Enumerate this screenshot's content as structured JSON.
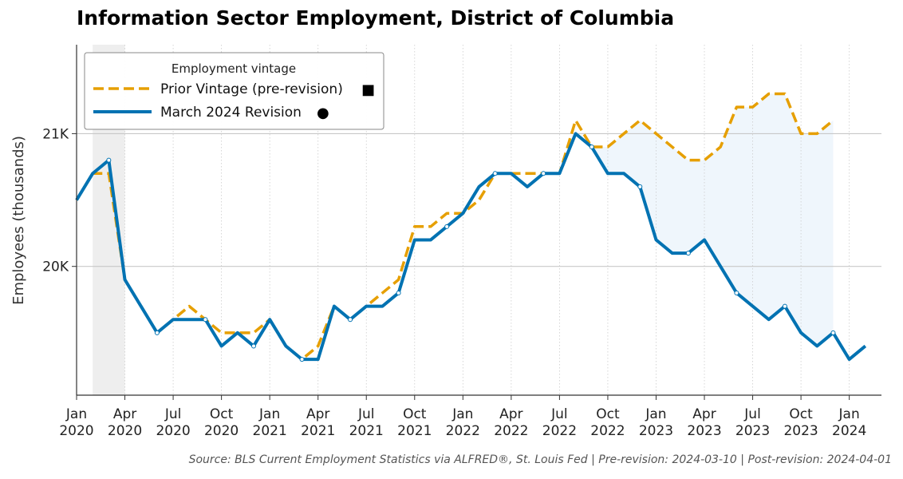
{
  "title": "Information Sector Employment, District of Columbia",
  "source_note": "Source: BLS Current Employment Statistics via ALFRED®, St. Louis Fed  |  Pre-revision: 2024-03-10  |  Post-revision: 2024-04-01",
  "chart_data": {
    "type": "line",
    "title": "Information Sector Employment, District of Columbia",
    "ylabel": "Employees (thousands)",
    "xlabel": "",
    "ylim": [
      19.03,
      21.67
    ],
    "xlim": [
      "2020-01",
      "2024-03"
    ],
    "x_ticks": [
      {
        "date": "2020-01",
        "line1": "Jan",
        "line2": "2020"
      },
      {
        "date": "2020-04",
        "line1": "Apr",
        "line2": "2020"
      },
      {
        "date": "2020-07",
        "line1": "Jul",
        "line2": "2020"
      },
      {
        "date": "2020-10",
        "line1": "Oct",
        "line2": "2020"
      },
      {
        "date": "2021-01",
        "line1": "Jan",
        "line2": "2021"
      },
      {
        "date": "2021-04",
        "line1": "Apr",
        "line2": "2021"
      },
      {
        "date": "2021-07",
        "line1": "Jul",
        "line2": "2021"
      },
      {
        "date": "2021-10",
        "line1": "Oct",
        "line2": "2021"
      },
      {
        "date": "2022-01",
        "line1": "Jan",
        "line2": "2022"
      },
      {
        "date": "2022-04",
        "line1": "Apr",
        "line2": "2022"
      },
      {
        "date": "2022-07",
        "line1": "Jul",
        "line2": "2022"
      },
      {
        "date": "2022-10",
        "line1": "Oct",
        "line2": "2022"
      },
      {
        "date": "2023-01",
        "line1": "Jan",
        "line2": "2023"
      },
      {
        "date": "2023-04",
        "line1": "Apr",
        "line2": "2023"
      },
      {
        "date": "2023-07",
        "line1": "Jul",
        "line2": "2023"
      },
      {
        "date": "2023-10",
        "line1": "Oct",
        "line2": "2023"
      },
      {
        "date": "2024-01",
        "line1": "Jan",
        "line2": "2024"
      }
    ],
    "y_ticks": [
      {
        "value": 20,
        "label": "20K"
      },
      {
        "value": 21,
        "label": "21K"
      }
    ],
    "recession_shading": [
      "2020-02",
      "2020-04"
    ],
    "revision_gap_shading": [
      "2022-09",
      "2023-12"
    ],
    "legend": {
      "title": "Employment vintage",
      "placement": "top-left",
      "entries": [
        {
          "label": "Prior Vintage (pre-revision)",
          "marker": "■"
        },
        {
          "label": "March 2024 Revision",
          "marker": "●"
        }
      ]
    },
    "series": [
      {
        "name": "Prior Vintage (pre-revision)",
        "color": "#E69F00",
        "style": "dashed",
        "start": "2020-01",
        "values": [
          20.5,
          20.7,
          20.7,
          19.9,
          19.7,
          19.5,
          19.6,
          19.7,
          19.6,
          19.5,
          19.5,
          19.5,
          19.6,
          19.4,
          19.3,
          19.4,
          19.7,
          19.6,
          19.7,
          19.8,
          19.9,
          20.3,
          20.3,
          20.4,
          20.4,
          20.5,
          20.7,
          20.7,
          20.7,
          20.7,
          20.7,
          21.1,
          20.9,
          20.9,
          21.0,
          21.1,
          21.0,
          20.9,
          20.8,
          20.8,
          20.9,
          21.2,
          21.2,
          21.3,
          21.3,
          21.0,
          21.0,
          21.1
        ]
      },
      {
        "name": "March 2024 Revision",
        "color": "#0072B2",
        "style": "solid",
        "start": "2020-01",
        "values": [
          20.5,
          20.7,
          20.8,
          19.9,
          19.7,
          19.5,
          19.6,
          19.6,
          19.6,
          19.4,
          19.5,
          19.4,
          19.6,
          19.4,
          19.3,
          19.3,
          19.7,
          19.6,
          19.7,
          19.7,
          19.8,
          20.2,
          20.2,
          20.3,
          20.4,
          20.6,
          20.7,
          20.7,
          20.6,
          20.7,
          20.7,
          21.0,
          20.9,
          20.7,
          20.7,
          20.6,
          20.2,
          20.1,
          20.1,
          20.2,
          20.0,
          19.8,
          19.7,
          19.6,
          19.7,
          19.5,
          19.4,
          19.5,
          19.3,
          19.4
        ]
      }
    ]
  }
}
